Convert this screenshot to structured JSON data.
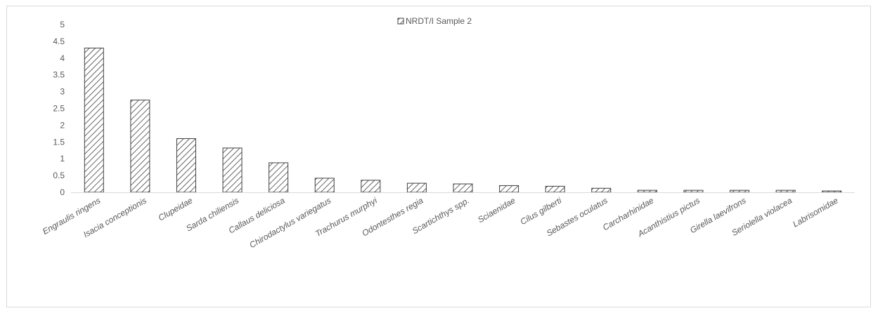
{
  "chart_data": {
    "type": "bar",
    "title": "",
    "xlabel": "",
    "ylabel": "",
    "ylim": [
      0,
      5
    ],
    "yticks": [
      "0",
      "0.5",
      "1",
      "1.5",
      "2",
      "2.5",
      "3",
      "3.5",
      "4",
      "4.5",
      "5"
    ],
    "grid": false,
    "legend_position": "top-center",
    "categories": [
      "Engraulis ringens",
      "Isacia conceptionis",
      "Clupeidae",
      "Sarda chiliensis",
      "Callaus deliciosa",
      "Chirodactylus variegatus",
      "Trachurus murphyi",
      "Odontesthes regia",
      "Scartichthys spp.",
      "Sciaenidae",
      "Cilus gilberti",
      "Sebastes oculatus",
      "Carcharhinidae",
      "Acanthistius pictus",
      "Girella laevifrons",
      "Seriolella violacea",
      "Labrisomidae"
    ],
    "series": [
      {
        "name": "NRDT/I Sample 2",
        "values": [
          4.3,
          2.75,
          1.6,
          1.32,
          0.88,
          0.42,
          0.36,
          0.27,
          0.25,
          0.2,
          0.18,
          0.12,
          0.06,
          0.06,
          0.06,
          0.06,
          0.04
        ],
        "color": "#404040",
        "pattern": "diagonal-hatch"
      }
    ]
  }
}
